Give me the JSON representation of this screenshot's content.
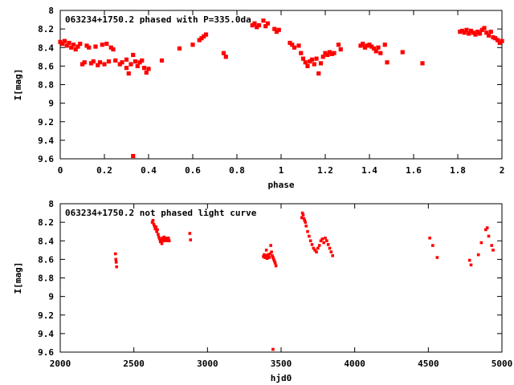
{
  "chart_data": [
    {
      "type": "scatter",
      "title": "063234+1750.2 phased with P=335.0da",
      "xlabel": "phase",
      "ylabel": "I[mag]",
      "xlim": [
        0,
        2
      ],
      "ylim": [
        8,
        9.6
      ],
      "y_inverted": true,
      "x_ticks": [
        "0",
        "0.2",
        "0.4",
        "0.6",
        "0.8",
        "1",
        "1.2",
        "1.4",
        "1.6",
        "1.8",
        "2"
      ],
      "y_ticks": [
        "8",
        "8.2",
        "8.4",
        "8.6",
        "8.8",
        "9",
        "9.2",
        "9.4",
        "9.6"
      ],
      "marker_color": "#ff0000",
      "series": [
        {
          "points": [
            [
              0.0,
              8.34
            ],
            [
              0.01,
              8.36
            ],
            [
              0.02,
              8.33
            ],
            [
              0.03,
              8.38
            ],
            [
              0.04,
              8.35
            ],
            [
              0.05,
              8.4
            ],
            [
              0.06,
              8.37
            ],
            [
              0.07,
              8.42
            ],
            [
              0.08,
              8.39
            ],
            [
              0.09,
              8.36
            ],
            [
              0.1,
              8.58
            ],
            [
              0.11,
              8.56
            ],
            [
              0.12,
              8.38
            ],
            [
              0.13,
              8.4
            ],
            [
              0.14,
              8.57
            ],
            [
              0.15,
              8.55
            ],
            [
              0.16,
              8.39
            ],
            [
              0.17,
              8.59
            ],
            [
              0.18,
              8.56
            ],
            [
              0.19,
              8.37
            ],
            [
              0.2,
              8.58
            ],
            [
              0.21,
              8.36
            ],
            [
              0.22,
              8.55
            ],
            [
              0.23,
              8.4
            ],
            [
              0.24,
              8.42
            ],
            [
              0.25,
              8.54
            ],
            [
              0.27,
              8.58
            ],
            [
              0.28,
              8.56
            ],
            [
              0.3,
              8.53
            ],
            [
              0.32,
              8.58
            ],
            [
              0.33,
              8.48
            ],
            [
              0.34,
              8.55
            ],
            [
              0.35,
              8.6
            ],
            [
              0.36,
              8.56
            ],
            [
              0.37,
              8.54
            ],
            [
              0.38,
              8.62
            ],
            [
              0.3,
              8.62
            ],
            [
              0.31,
              8.68
            ],
            [
              0.39,
              8.67
            ],
            [
              0.4,
              8.63
            ],
            [
              0.33,
              9.57
            ],
            [
              0.46,
              8.54
            ],
            [
              0.54,
              8.41
            ],
            [
              0.6,
              8.37
            ],
            [
              0.63,
              8.32
            ],
            [
              0.65,
              8.28
            ],
            [
              0.64,
              8.3
            ],
            [
              0.66,
              8.26
            ],
            [
              0.74,
              8.46
            ],
            [
              0.75,
              8.5
            ],
            [
              0.87,
              8.16
            ],
            [
              0.88,
              8.14
            ],
            [
              0.89,
              8.18
            ],
            [
              0.9,
              8.16
            ],
            [
              0.92,
              8.11
            ],
            [
              0.93,
              8.17
            ],
            [
              0.94,
              8.14
            ],
            [
              0.97,
              8.2
            ],
            [
              0.98,
              8.23
            ],
            [
              0.99,
              8.21
            ],
            [
              1.04,
              8.35
            ],
            [
              1.05,
              8.37
            ],
            [
              1.06,
              8.4
            ],
            [
              1.08,
              8.38
            ],
            [
              1.09,
              8.46
            ],
            [
              1.1,
              8.52
            ],
            [
              1.11,
              8.56
            ],
            [
              1.12,
              8.6
            ],
            [
              1.13,
              8.55
            ],
            [
              1.14,
              8.53
            ],
            [
              1.15,
              8.58
            ],
            [
              1.16,
              8.52
            ],
            [
              1.17,
              8.68
            ],
            [
              1.18,
              8.57
            ],
            [
              1.19,
              8.5
            ],
            [
              1.2,
              8.46
            ],
            [
              1.21,
              8.48
            ],
            [
              1.22,
              8.45
            ],
            [
              1.23,
              8.47
            ],
            [
              1.24,
              8.46
            ],
            [
              1.26,
              8.37
            ],
            [
              1.27,
              8.42
            ],
            [
              1.36,
              8.38
            ],
            [
              1.37,
              8.36
            ],
            [
              1.38,
              8.4
            ],
            [
              1.39,
              8.38
            ],
            [
              1.4,
              8.37
            ],
            [
              1.41,
              8.39
            ],
            [
              1.42,
              8.41
            ],
            [
              1.43,
              8.44
            ],
            [
              1.44,
              8.4
            ],
            [
              1.45,
              8.46
            ],
            [
              1.47,
              8.37
            ],
            [
              1.48,
              8.56
            ],
            [
              1.55,
              8.45
            ],
            [
              1.64,
              8.57
            ],
            [
              1.81,
              8.23
            ],
            [
              1.82,
              8.22
            ],
            [
              1.83,
              8.24
            ],
            [
              1.84,
              8.21
            ],
            [
              1.85,
              8.25
            ],
            [
              1.86,
              8.22
            ],
            [
              1.87,
              8.24
            ],
            [
              1.88,
              8.26
            ],
            [
              1.89,
              8.23
            ],
            [
              1.9,
              8.25
            ],
            [
              1.91,
              8.21
            ],
            [
              1.92,
              8.19
            ],
            [
              1.93,
              8.24
            ],
            [
              1.94,
              8.27
            ],
            [
              1.95,
              8.23
            ],
            [
              1.96,
              8.29
            ],
            [
              1.97,
              8.3
            ],
            [
              1.98,
              8.32
            ],
            [
              1.99,
              8.35
            ],
            [
              2.0,
              8.33
            ]
          ]
        }
      ]
    },
    {
      "type": "scatter",
      "title": "063234+1750.2 not phased light curve",
      "xlabel": "hjd0",
      "ylabel": "I[mag]",
      "xlim": [
        2000,
        5000
      ],
      "ylim": [
        8,
        9.6
      ],
      "y_inverted": true,
      "x_ticks": [
        "2000",
        "2500",
        "3000",
        "3500",
        "4000",
        "4500",
        "5000"
      ],
      "y_ticks": [
        "8",
        "8.2",
        "8.4",
        "8.6",
        "8.8",
        "9",
        "9.2",
        "9.4",
        "9.6"
      ],
      "marker_color": "#ff0000",
      "series": [
        {
          "points": [
            [
              2375,
              8.54
            ],
            [
              2378,
              8.6
            ],
            [
              2380,
              8.63
            ],
            [
              2383,
              8.68
            ],
            [
              2625,
              8.2
            ],
            [
              2630,
              8.18
            ],
            [
              2635,
              8.22
            ],
            [
              2640,
              8.24
            ],
            [
              2645,
              8.27
            ],
            [
              2650,
              8.25
            ],
            [
              2655,
              8.3
            ],
            [
              2660,
              8.28
            ],
            [
              2665,
              8.33
            ],
            [
              2670,
              8.36
            ],
            [
              2675,
              8.38
            ],
            [
              2680,
              8.41
            ],
            [
              2685,
              8.39
            ],
            [
              2690,
              8.43
            ],
            [
              2695,
              8.37
            ],
            [
              2700,
              8.4
            ],
            [
              2705,
              8.36
            ],
            [
              2710,
              8.39
            ],
            [
              2715,
              8.37
            ],
            [
              2720,
              8.4
            ],
            [
              2725,
              8.38
            ],
            [
              2730,
              8.39
            ],
            [
              2735,
              8.37
            ],
            [
              2740,
              8.4
            ],
            [
              2880,
              8.32
            ],
            [
              2885,
              8.39
            ],
            [
              3380,
              8.57
            ],
            [
              3385,
              8.55
            ],
            [
              3390,
              8.58
            ],
            [
              3395,
              8.56
            ],
            [
              3400,
              8.5
            ],
            [
              3405,
              8.59
            ],
            [
              3410,
              8.55
            ],
            [
              3415,
              8.57
            ],
            [
              3420,
              8.58
            ],
            [
              3425,
              8.54
            ],
            [
              3430,
              8.45
            ],
            [
              3435,
              8.52
            ],
            [
              3440,
              8.56
            ],
            [
              3445,
              8.58
            ],
            [
              3450,
              8.6
            ],
            [
              3455,
              8.62
            ],
            [
              3460,
              8.64
            ],
            [
              3465,
              8.67
            ],
            [
              3445,
              9.57
            ],
            [
              3640,
              8.15
            ],
            [
              3645,
              8.1
            ],
            [
              3650,
              8.12
            ],
            [
              3655,
              8.16
            ],
            [
              3660,
              8.18
            ],
            [
              3665,
              8.2
            ],
            [
              3670,
              8.24
            ],
            [
              3680,
              8.3
            ],
            [
              3690,
              8.35
            ],
            [
              3700,
              8.4
            ],
            [
              3710,
              8.44
            ],
            [
              3720,
              8.48
            ],
            [
              3730,
              8.5
            ],
            [
              3740,
              8.52
            ],
            [
              3750,
              8.48
            ],
            [
              3760,
              8.45
            ],
            [
              3770,
              8.4
            ],
            [
              3780,
              8.38
            ],
            [
              3790,
              8.42
            ],
            [
              3800,
              8.37
            ],
            [
              3810,
              8.4
            ],
            [
              3820,
              8.44
            ],
            [
              3830,
              8.48
            ],
            [
              3840,
              8.52
            ],
            [
              3850,
              8.56
            ],
            [
              4510,
              8.37
            ],
            [
              4530,
              8.45
            ],
            [
              4560,
              8.58
            ],
            [
              4780,
              8.61
            ],
            [
              4790,
              8.66
            ],
            [
              4840,
              8.55
            ],
            [
              4860,
              8.42
            ],
            [
              4890,
              8.28
            ],
            [
              4900,
              8.26
            ],
            [
              4910,
              8.35
            ],
            [
              4930,
              8.45
            ],
            [
              4940,
              8.5
            ]
          ]
        }
      ]
    }
  ]
}
